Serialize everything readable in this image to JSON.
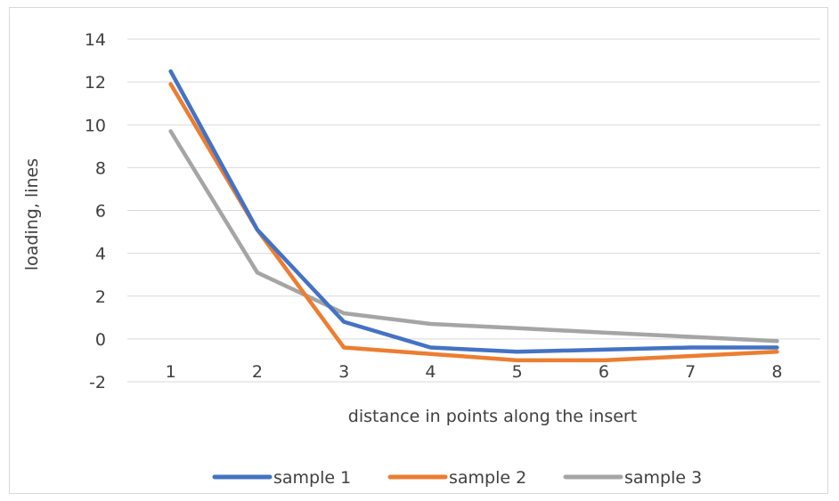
{
  "chart_data": {
    "type": "line",
    "title": "",
    "xlabel": "distance in points along the insert",
    "ylabel": "loading, lines",
    "categories": [
      "1",
      "2",
      "3",
      "4",
      "5",
      "6",
      "7",
      "8"
    ],
    "ylim": [
      -2,
      14
    ],
    "yticks": [
      "-2",
      "0",
      "2",
      "4",
      "6",
      "8",
      "10",
      "12",
      "14"
    ],
    "grid": "horizontal",
    "legend_position": "bottom",
    "series": [
      {
        "name": "sample 1",
        "color": "#4472c4",
        "values": [
          12.5,
          5.1,
          0.8,
          -0.4,
          -0.6,
          -0.5,
          -0.4,
          -0.4
        ]
      },
      {
        "name": "sample 2",
        "color": "#ed7d31",
        "values": [
          11.9,
          5.1,
          -0.4,
          -0.7,
          -1.0,
          -1.0,
          -0.8,
          -0.6
        ]
      },
      {
        "name": "sample 3",
        "color": "#a5a5a5",
        "values": [
          9.7,
          3.1,
          1.2,
          0.7,
          0.5,
          0.3,
          0.1,
          -0.1
        ]
      }
    ]
  }
}
